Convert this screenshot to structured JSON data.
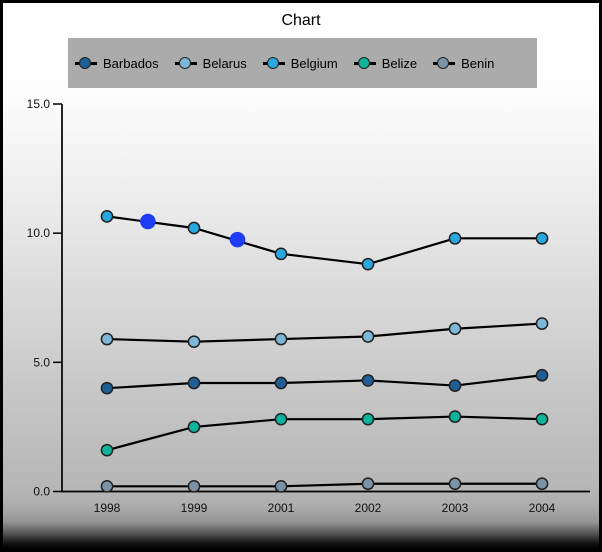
{
  "chart_data": {
    "type": "line",
    "title": "Chart",
    "categories": [
      "1998",
      "1999",
      "2001",
      "2002",
      "2003",
      "2004"
    ],
    "series": [
      {
        "name": "Barbados",
        "color": "#1f5f96",
        "values": [
          4.0,
          4.2,
          4.2,
          4.3,
          4.1,
          4.5
        ]
      },
      {
        "name": "Belarus",
        "color": "#7db7d8",
        "values": [
          5.9,
          5.8,
          5.9,
          6.0,
          6.3,
          6.5
        ]
      },
      {
        "name": "Belgium",
        "color": "#29a8e0",
        "values": [
          10.65,
          10.2,
          9.2,
          8.8,
          9.8,
          9.8
        ]
      },
      {
        "name": "Belize",
        "color": "#0db39a",
        "values": [
          1.6,
          2.5,
          2.8,
          2.8,
          2.9,
          2.8
        ]
      },
      {
        "name": "Benin",
        "color": "#7b93a6",
        "values": [
          0.2,
          0.2,
          0.2,
          0.3,
          0.3,
          0.3
        ]
      }
    ],
    "highlighted_points": [
      {
        "series": "Belgium",
        "after_index": 0,
        "t": 0.47,
        "value": 10.45,
        "color": "#1e3cf2"
      },
      {
        "series": "Belgium",
        "after_index": 1,
        "t": 0.5,
        "value": 9.75,
        "color": "#1e3cf2"
      }
    ],
    "y_ticks": [
      {
        "value": 0,
        "label": "0.0"
      },
      {
        "value": 5,
        "label": "5.0"
      },
      {
        "value": 10,
        "label": "10.0"
      },
      {
        "value": 15,
        "label": "15.0"
      }
    ],
    "ylim": [
      0,
      15
    ],
    "xlabel": "",
    "ylabel": "",
    "grid": false,
    "legend_position": "top",
    "colors": {
      "axis": "#000000",
      "line": "#000000",
      "marker_outline": "#222222",
      "legend_background": "#ababab",
      "highlight": "#1e3cf2",
      "title_text": "#000000"
    }
  }
}
